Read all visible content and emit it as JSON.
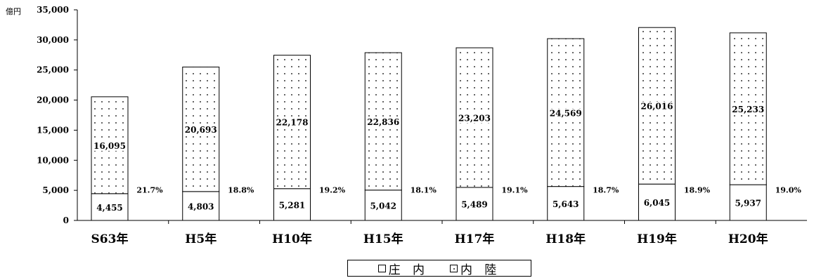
{
  "chart_data": {
    "type": "bar",
    "stacked": true,
    "yunit": "億円",
    "ylim": [
      0,
      35000
    ],
    "ytick_step": 5000,
    "yticks": [
      "0",
      "5,000",
      "10,000",
      "15,000",
      "20,000",
      "25,000",
      "30,000",
      "35,000"
    ],
    "grid": false,
    "categories": [
      "S63年",
      "H5年",
      "H10年",
      "H15年",
      "H17年",
      "H18年",
      "H19年",
      "H20年"
    ],
    "series": [
      {
        "name": "庄 内",
        "values": [
          4455,
          4803,
          5281,
          5042,
          5489,
          5643,
          6045,
          5937
        ],
        "labels": [
          "4,455",
          "4,803",
          "5,281",
          "5,042",
          "5,489",
          "5,643",
          "6,045",
          "5,937"
        ]
      },
      {
        "name": "内 陸",
        "values": [
          16095,
          20693,
          22178,
          22836,
          23203,
          24569,
          26016,
          25233
        ],
        "labels": [
          "16,095",
          "20,693",
          "22,178",
          "22,836",
          "23,203",
          "24,569",
          "26,016",
          "25,233"
        ]
      }
    ],
    "share_labels": [
      "21.7%",
      "18.8%",
      "19.2%",
      "18.1%",
      "19.1%",
      "18.7%",
      "18.9%",
      "19.0%"
    ],
    "legend_position": "bottom"
  },
  "colors": {
    "bar_fill": "#ffffff",
    "dot": "#666666",
    "stroke": "#000000"
  }
}
